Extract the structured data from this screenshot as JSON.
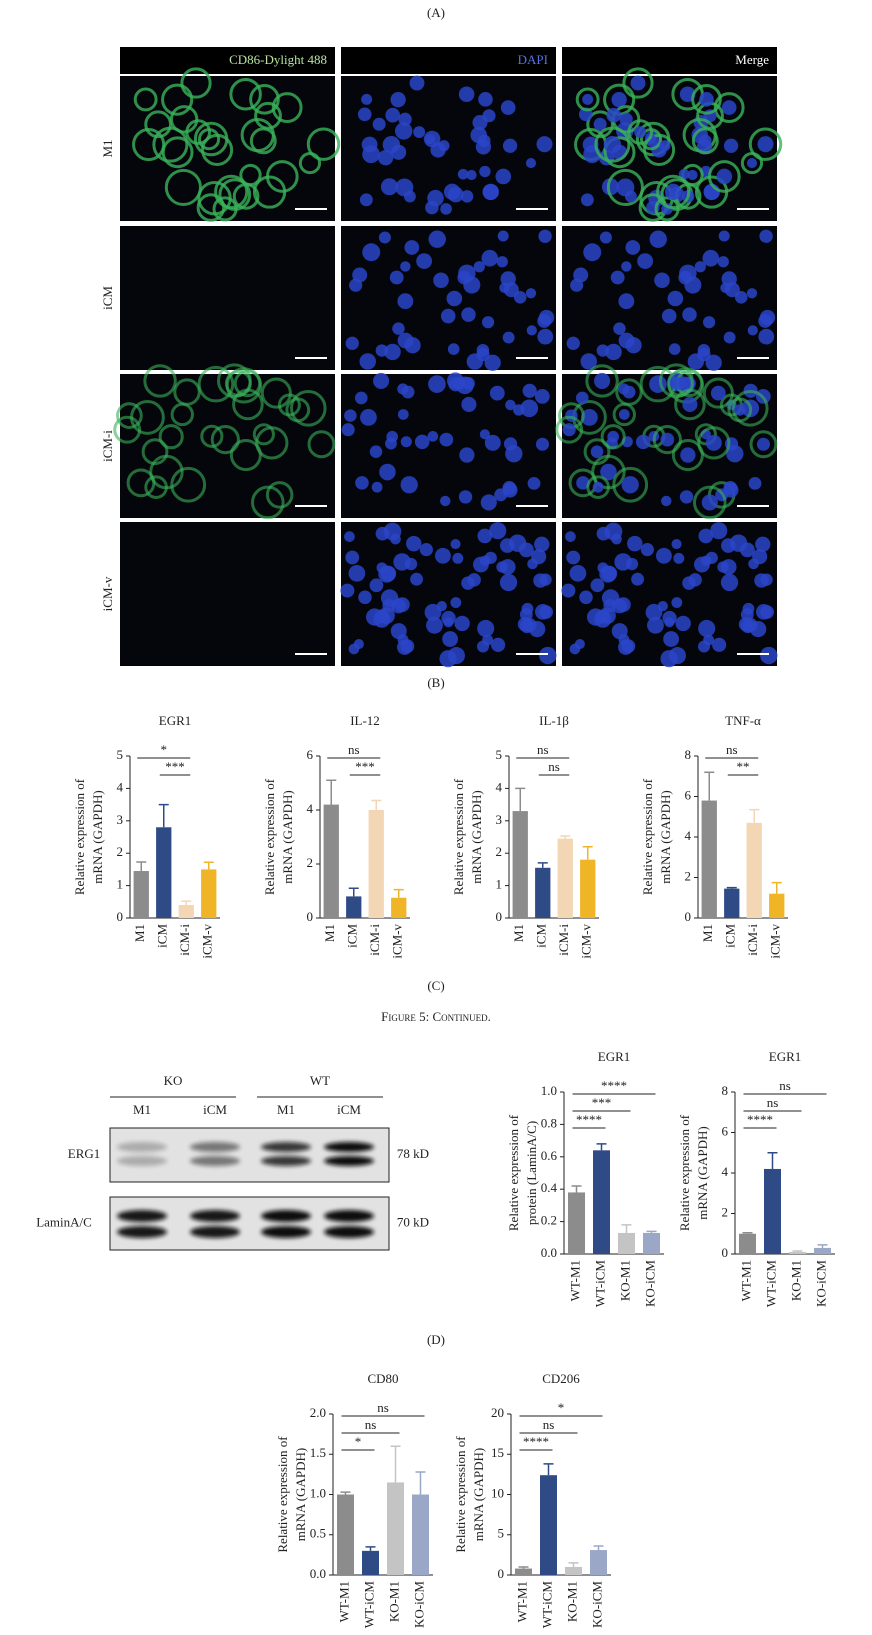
{
  "figure": {
    "panel_labels": [
      "(A)",
      "(B)",
      "(C)",
      "(D)"
    ],
    "caption": "Figure 5: Continued."
  },
  "microscopy": {
    "columns": [
      "CD86-Dylight 488",
      "DAPI",
      "Merge"
    ],
    "rows": [
      "M1",
      "iCM",
      "iCM-i",
      "iCM-v"
    ]
  },
  "blot": {
    "groups": [
      "KO",
      "WT"
    ],
    "lanes": [
      "M1",
      "iCM",
      "M1",
      "iCM"
    ],
    "rows": [
      {
        "label": "ERG1",
        "size": "78 kD"
      },
      {
        "label": "LaminA/C",
        "size": "70 kD"
      }
    ]
  },
  "chart_data": [
    {
      "type": "bar",
      "title": "EGR1",
      "ylabel": [
        "Relative expression of",
        "mRNA (GAPDH)"
      ],
      "categories": [
        "M1",
        "iCM",
        "iCM-i",
        "iCM-v"
      ],
      "values": [
        1.45,
        2.8,
        0.4,
        1.5
      ],
      "errors": [
        0.28,
        0.7,
        0.12,
        0.22
      ],
      "colors": [
        "#8c8c8c",
        "#2f4b86",
        "#f3d6b4",
        "#f0b526"
      ],
      "ylim": [
        0,
        5
      ],
      "yticks": [
        0,
        1,
        2,
        3,
        4,
        5
      ],
      "comparisons": [
        {
          "from": 0,
          "to": 2,
          "label": "*"
        },
        {
          "from": 1,
          "to": 2,
          "label": "***"
        }
      ]
    },
    {
      "type": "bar",
      "title": "IL-12",
      "ylabel": [
        "Relative expression of",
        "mRNA (GAPDH)"
      ],
      "categories": [
        "M1",
        "iCM",
        "iCM-i",
        "iCM-v"
      ],
      "values": [
        4.2,
        0.8,
        4.0,
        0.75
      ],
      "errors": [
        0.9,
        0.3,
        0.35,
        0.3
      ],
      "colors": [
        "#8c8c8c",
        "#2f4b86",
        "#f3d6b4",
        "#f0b526"
      ],
      "ylim": [
        0,
        6
      ],
      "yticks": [
        0,
        2,
        4,
        6
      ],
      "comparisons": [
        {
          "from": 0,
          "to": 2,
          "label": "ns"
        },
        {
          "from": 1,
          "to": 2,
          "label": "***"
        }
      ]
    },
    {
      "type": "bar",
      "title": "IL-1β",
      "ylabel": [
        "Relative expression of",
        "mRNA (GAPDH)"
      ],
      "categories": [
        "M1",
        "iCM",
        "iCM-i",
        "iCM-v"
      ],
      "values": [
        3.3,
        1.55,
        2.45,
        1.8
      ],
      "errors": [
        0.7,
        0.15,
        0.08,
        0.4
      ],
      "colors": [
        "#8c8c8c",
        "#2f4b86",
        "#f3d6b4",
        "#f0b526"
      ],
      "ylim": [
        0,
        5
      ],
      "yticks": [
        0,
        1,
        2,
        3,
        4,
        5
      ],
      "comparisons": [
        {
          "from": 0,
          "to": 2,
          "label": "ns"
        },
        {
          "from": 1,
          "to": 2,
          "label": "ns"
        }
      ]
    },
    {
      "type": "bar",
      "title": "TNF-α",
      "ylabel": [
        "Relative expression of",
        "mRNA (GAPDH)"
      ],
      "categories": [
        "M1",
        "iCM",
        "iCM-i",
        "iCM-v"
      ],
      "values": [
        5.8,
        1.45,
        4.7,
        1.2
      ],
      "errors": [
        1.4,
        0.05,
        0.65,
        0.55
      ],
      "colors": [
        "#8c8c8c",
        "#2f4b86",
        "#f3d6b4",
        "#f0b526"
      ],
      "ylim": [
        0,
        8
      ],
      "yticks": [
        0,
        2,
        4,
        6,
        8
      ],
      "comparisons": [
        {
          "from": 0,
          "to": 2,
          "label": "ns"
        },
        {
          "from": 1,
          "to": 2,
          "label": "**"
        }
      ]
    },
    {
      "type": "bar",
      "title": "EGR1",
      "ylabel": [
        "Relative expression of",
        "protein (LaminA/C)"
      ],
      "categories": [
        "WT-M1",
        "WT-iCM",
        "KO-M1",
        "KO-iCM"
      ],
      "values": [
        0.38,
        0.64,
        0.13,
        0.13
      ],
      "errors": [
        0.04,
        0.04,
        0.05,
        0.01
      ],
      "colors": [
        "#8c8c8c",
        "#2f4b86",
        "#c4c4c4",
        "#9aa7c7"
      ],
      "ylim": [
        0,
        1
      ],
      "yticks": [
        {
          "value": 0,
          "label": "0.0"
        },
        0.2,
        0.4,
        0.6,
        0.8,
        {
          "value": 1,
          "label": "1.0"
        }
      ],
      "comparisons": [
        {
          "from": 0,
          "to": 3,
          "label": "****"
        },
        {
          "from": 0,
          "to": 2,
          "label": "***"
        },
        {
          "from": 0,
          "to": 1,
          "label": "****"
        }
      ]
    },
    {
      "type": "bar",
      "title": "EGR1",
      "ylabel": [
        "Relative expression of",
        "mRNA (GAPDH)"
      ],
      "categories": [
        "WT-M1",
        "WT-iCM",
        "KO-M1",
        "KO-iCM"
      ],
      "values": [
        1.0,
        4.2,
        0.1,
        0.3
      ],
      "errors": [
        0.05,
        0.8,
        0.05,
        0.15
      ],
      "colors": [
        "#8c8c8c",
        "#2f4b86",
        "#c4c4c4",
        "#9aa7c7"
      ],
      "ylim": [
        0,
        8
      ],
      "yticks": [
        0,
        2,
        4,
        6,
        8
      ],
      "comparisons": [
        {
          "from": 0,
          "to": 3,
          "label": "ns"
        },
        {
          "from": 0,
          "to": 2,
          "label": "ns"
        },
        {
          "from": 0,
          "to": 1,
          "label": "****"
        }
      ]
    },
    {
      "type": "bar",
      "title": "CD80",
      "ylabel": [
        "Relative expression of",
        "mRNA (GAPDH)"
      ],
      "categories": [
        "WT-M1",
        "WT-iCM",
        "KO-M1",
        "KO-iCM"
      ],
      "values": [
        1.0,
        0.3,
        1.15,
        1.0
      ],
      "errors": [
        0.03,
        0.05,
        0.45,
        0.28
      ],
      "colors": [
        "#8c8c8c",
        "#2f4b86",
        "#c4c4c4",
        "#9aa7c7"
      ],
      "ylim": [
        0,
        2
      ],
      "yticks": [
        {
          "value": 0,
          "label": "0.0"
        },
        0.5,
        {
          "value": 1,
          "label": "1.0"
        },
        1.5,
        {
          "value": 2,
          "label": "2.0"
        }
      ],
      "comparisons": [
        {
          "from": 0,
          "to": 3,
          "label": "ns"
        },
        {
          "from": 0,
          "to": 2,
          "label": "ns"
        },
        {
          "from": 0,
          "to": 1,
          "label": "*"
        }
      ]
    },
    {
      "type": "bar",
      "title": "CD206",
      "ylabel": [
        "Relative expression of",
        "mRNA (GAPDH)"
      ],
      "categories": [
        "WT-M1",
        "WT-iCM",
        "KO-M1",
        "KO-iCM"
      ],
      "values": [
        0.8,
        12.4,
        1.0,
        3.1
      ],
      "errors": [
        0.2,
        1.4,
        0.5,
        0.5
      ],
      "colors": [
        "#8c8c8c",
        "#2f4b86",
        "#c4c4c4",
        "#9aa7c7"
      ],
      "ylim": [
        0,
        20
      ],
      "yticks": [
        0,
        5,
        10,
        15,
        20
      ],
      "comparisons": [
        {
          "from": 0,
          "to": 3,
          "label": "*"
        },
        {
          "from": 0,
          "to": 2,
          "label": "ns"
        },
        {
          "from": 0,
          "to": 1,
          "label": "****"
        }
      ]
    }
  ]
}
